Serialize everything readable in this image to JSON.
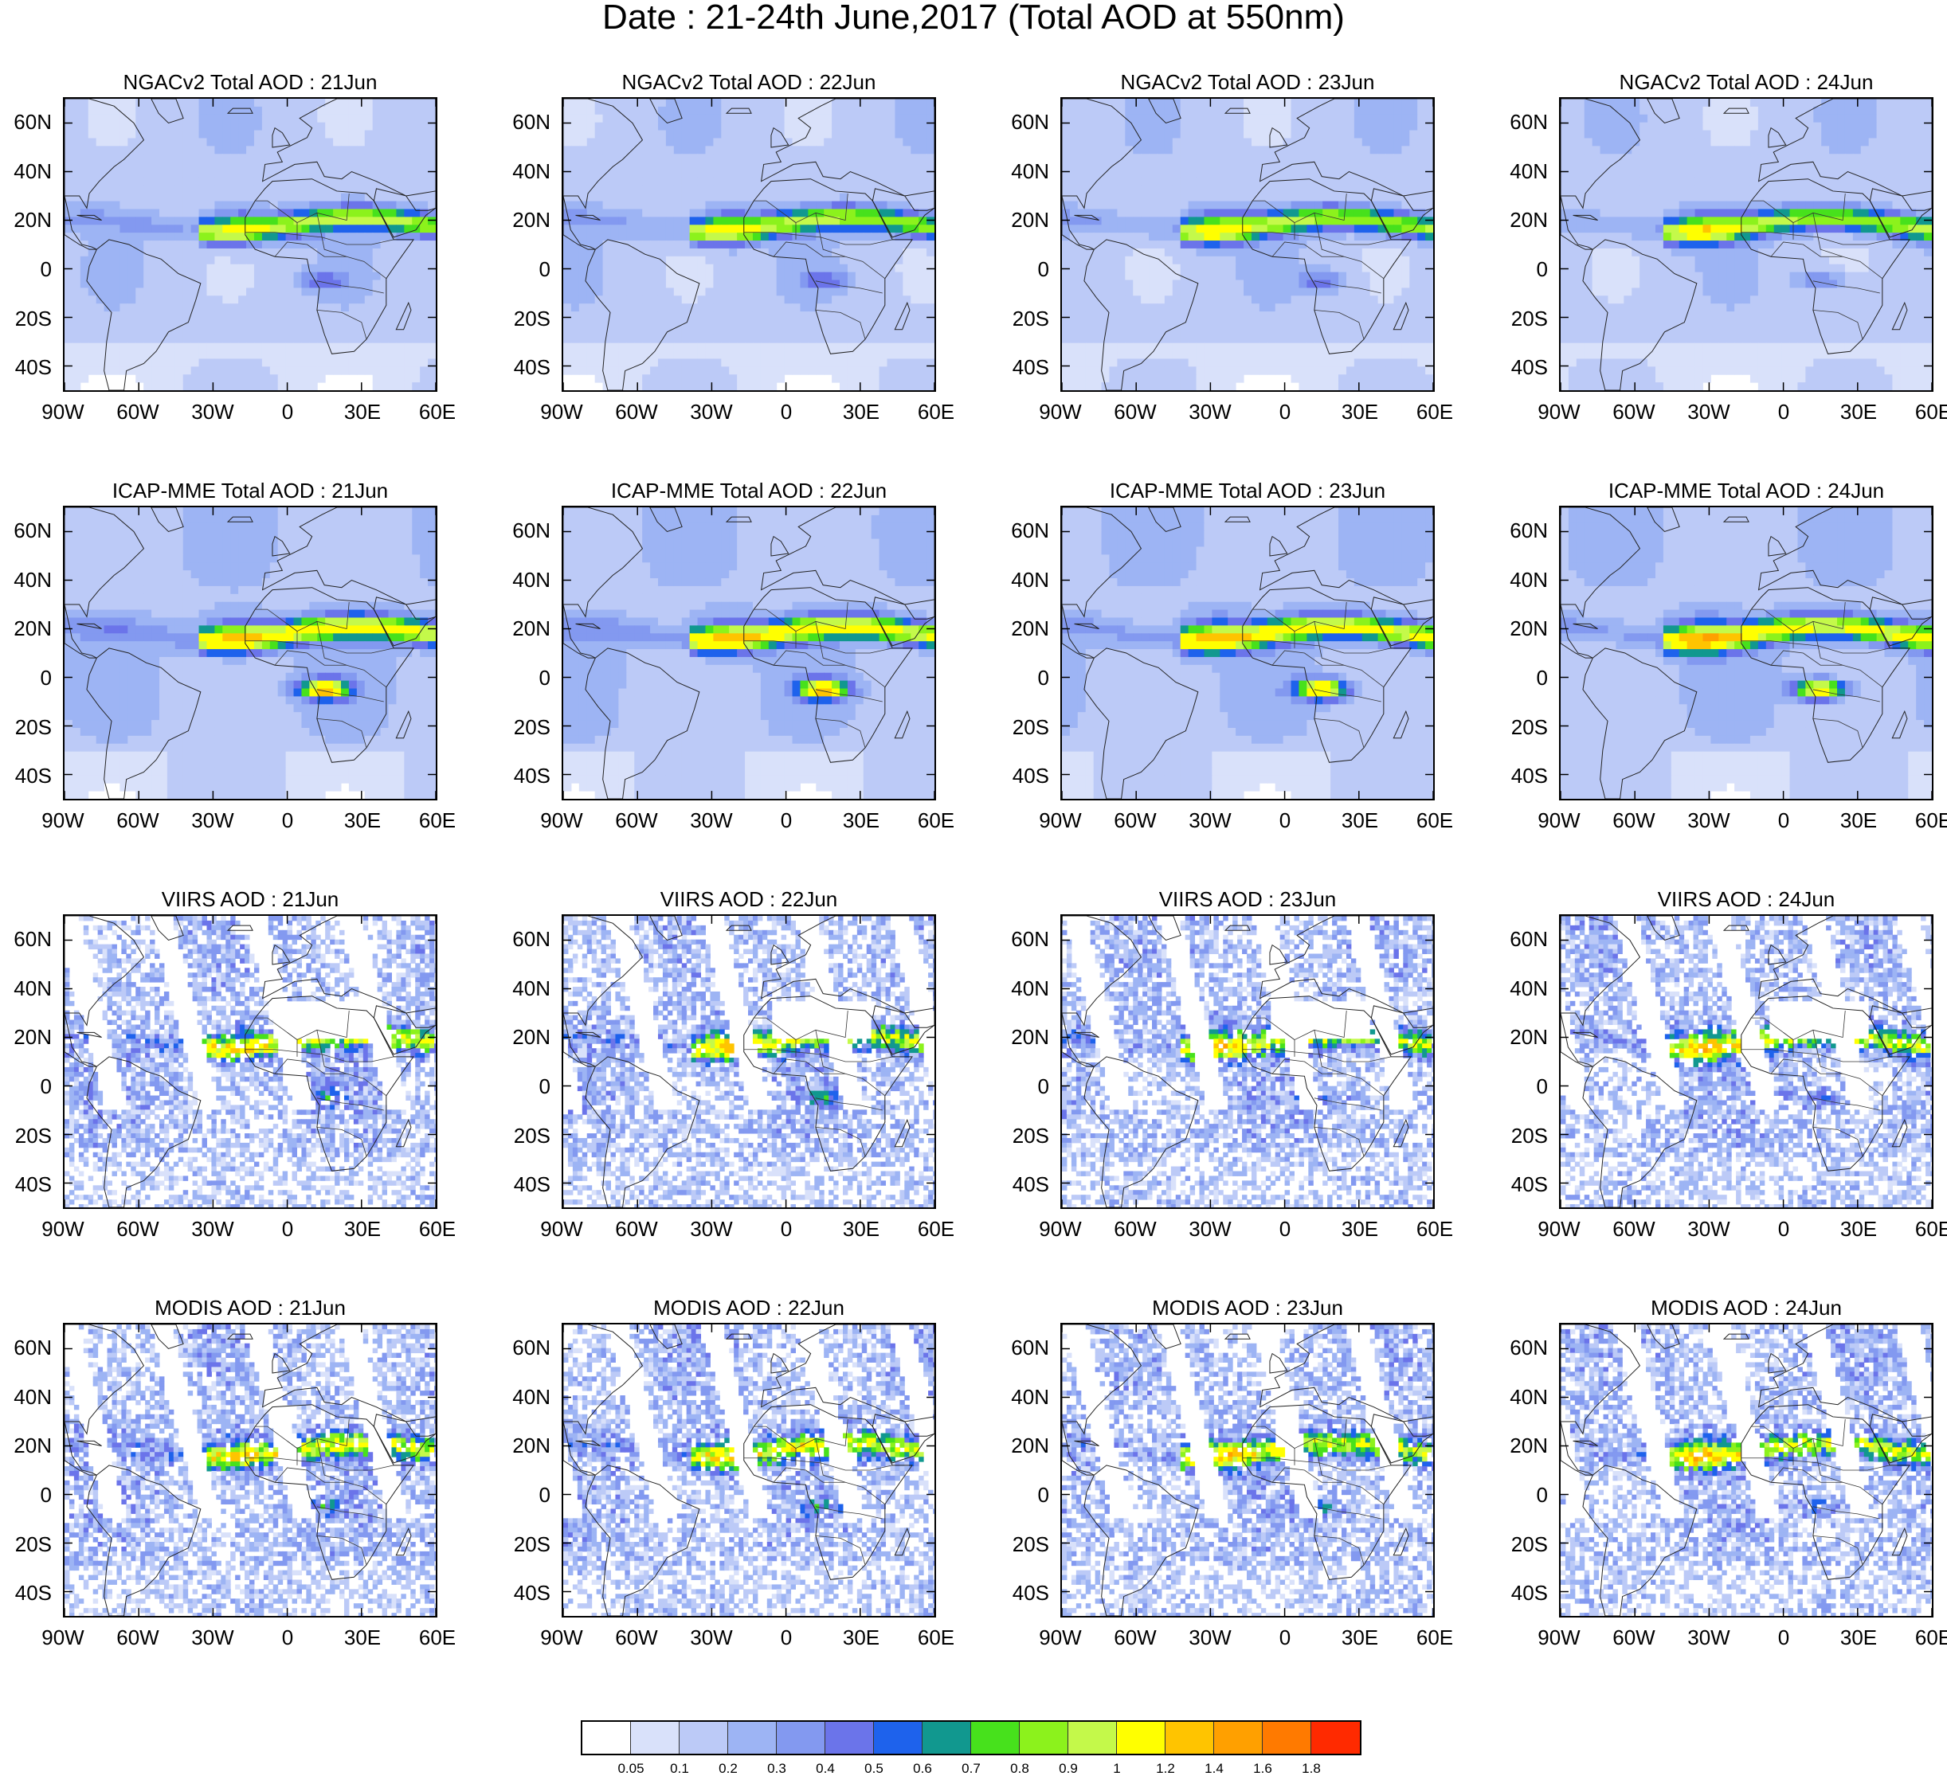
{
  "title": "Date : 21-24th June,2017 (Total AOD at 550nm)",
  "rows": [
    {
      "product": "NGACv2 Total AOD",
      "style": "model-a"
    },
    {
      "product": "ICAP-MME Total AOD",
      "style": "model-b"
    },
    {
      "product": "VIIRS AOD",
      "style": "sat-a"
    },
    {
      "product": "MODIS AOD",
      "style": "sat-b"
    }
  ],
  "panels": [
    [
      "NGACv2 Total AOD : 21Jun",
      "NGACv2 Total AOD : 22Jun",
      "NGACv2 Total AOD : 23Jun",
      "NGACv2 Total AOD : 24Jun"
    ],
    [
      "ICAP-MME Total AOD : 21Jun",
      "ICAP-MME Total AOD : 22Jun",
      "ICAP-MME Total AOD : 23Jun",
      "ICAP-MME Total AOD : 24Jun"
    ],
    [
      "VIIRS AOD : 21Jun",
      "VIIRS AOD : 22Jun",
      "VIIRS AOD : 23Jun",
      "VIIRS AOD : 24Jun"
    ],
    [
      "MODIS AOD : 21Jun",
      "MODIS AOD : 22Jun",
      "MODIS AOD : 23Jun",
      "MODIS AOD : 24Jun"
    ]
  ],
  "map_extent": {
    "lon": [
      -90,
      60
    ],
    "lat": [
      -50,
      70
    ]
  },
  "lat_labels": [
    "60N",
    "40N",
    "20N",
    "0",
    "20S",
    "40S"
  ],
  "lat_values": [
    60,
    40,
    20,
    0,
    -20,
    -40
  ],
  "lon_labels": [
    "90W",
    "60W",
    "30W",
    "0",
    "30E",
    "60E"
  ],
  "lon_values": [
    -90,
    -60,
    -30,
    0,
    30,
    60
  ],
  "colorbar": {
    "labels": [
      "0.05",
      "0.1",
      "0.2",
      "0.3",
      "0.4",
      "0.5",
      "0.6",
      "0.7",
      "0.8",
      "0.9",
      "1",
      "1.2",
      "1.4",
      "1.6",
      "1.8"
    ],
    "colors": [
      "#ffffff",
      "#d9e1fa",
      "#bccaf7",
      "#9db4f4",
      "#8399f0",
      "#6b74ea",
      "#1e62ec",
      "#11988f",
      "#47e11c",
      "#8cf21c",
      "#c4f94a",
      "#ffff00",
      "#ffc400",
      "#ffa000",
      "#ff7a00",
      "#ff2a00"
    ]
  }
}
